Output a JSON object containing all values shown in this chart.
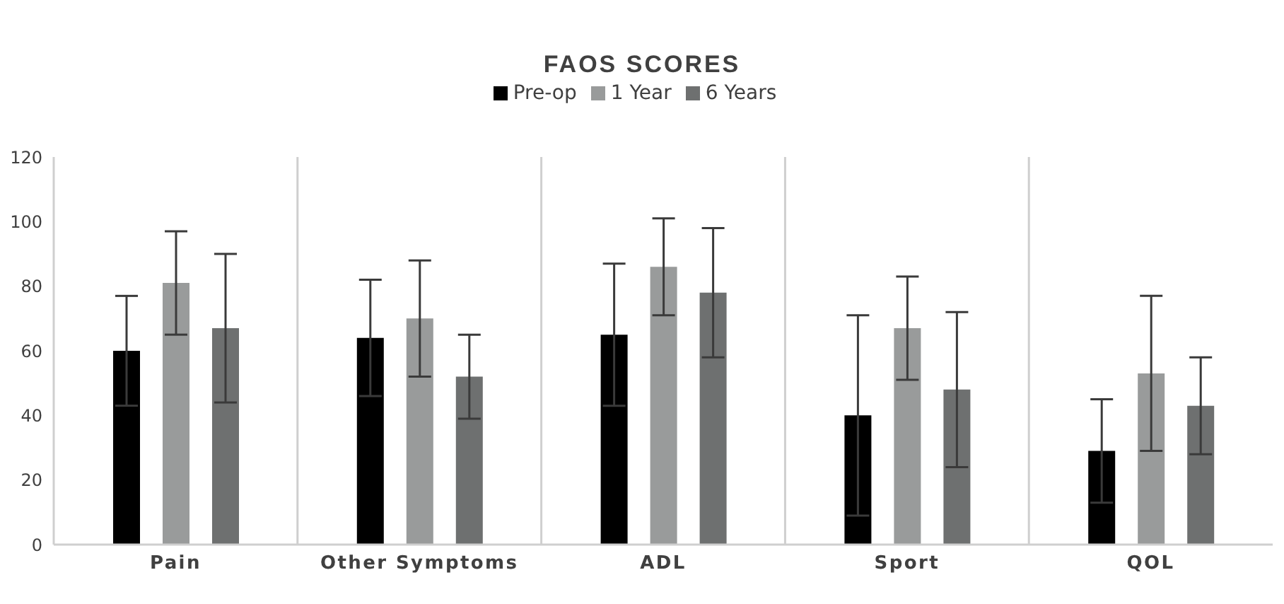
{
  "chart_data": {
    "type": "bar",
    "title": "FAOS SCORES",
    "categories": [
      "Pain",
      "Other Symptoms",
      "ADL",
      "Sport",
      "QOL"
    ],
    "series": [
      {
        "name": "Pre-op",
        "color": "#000000",
        "values": [
          60,
          64,
          65,
          40,
          29
        ],
        "errors": [
          17,
          18,
          22,
          31,
          16
        ]
      },
      {
        "name": "1 Year",
        "color": "#999b9b",
        "values": [
          81,
          70,
          86,
          67,
          53
        ],
        "errors": [
          16,
          18,
          15,
          16,
          24
        ]
      },
      {
        "name": "6 Years",
        "color": "#6e7070",
        "values": [
          67,
          52,
          78,
          48,
          43
        ],
        "errors": [
          23,
          13,
          20,
          24,
          15
        ]
      }
    ],
    "ylim": [
      0,
      120
    ],
    "yticks": [
      0,
      20,
      40,
      60,
      80,
      100,
      120
    ],
    "grid": "x",
    "legend": "top"
  }
}
